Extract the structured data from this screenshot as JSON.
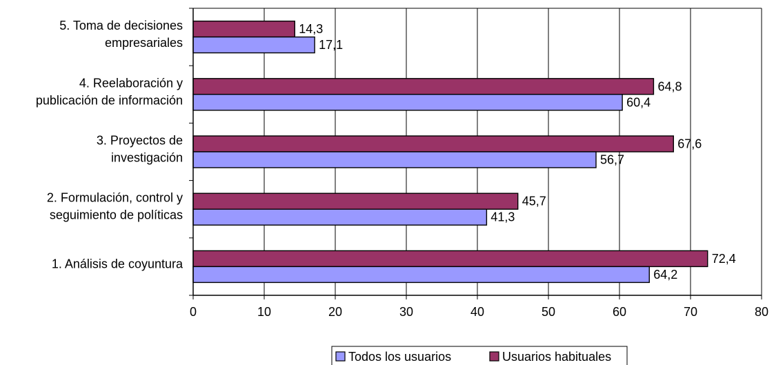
{
  "chart_data": {
    "type": "bar",
    "orientation": "horizontal",
    "categories": [
      [
        "1. Análisis de coyuntura"
      ],
      [
        "2. Formulación, control y",
        "seguimiento de políticas"
      ],
      [
        "3. Proyectos de",
        "investigación"
      ],
      [
        "4. Reelaboración y",
        "publicación de información"
      ],
      [
        "5. Toma de decisiones",
        "empresariales"
      ]
    ],
    "series": [
      {
        "name": "Todos los usuarios",
        "color": "#9999ff",
        "values": [
          64.2,
          41.3,
          56.7,
          60.4,
          17.1
        ],
        "labels": [
          "64,2",
          "41,3",
          "56,7",
          "60,4",
          "17,1"
        ]
      },
      {
        "name": "Usuarios habituales",
        "color": "#993366",
        "values": [
          72.4,
          45.7,
          67.6,
          64.8,
          14.3
        ],
        "labels": [
          "72,4",
          "45,7",
          "67,6",
          "64,8",
          "14,3"
        ]
      }
    ],
    "xlim": [
      0,
      80
    ],
    "xticks": [
      0,
      10,
      20,
      30,
      40,
      50,
      60,
      70,
      80
    ],
    "grid": "vertical",
    "legend": "bottom",
    "title": "",
    "xlabel": "",
    "ylabel": ""
  }
}
